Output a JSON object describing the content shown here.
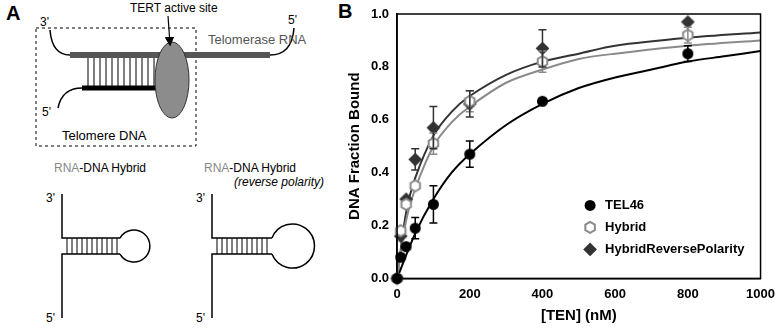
{
  "diagram": {
    "panel_label": "A",
    "active_site": "TERT active site",
    "telomerase_rna": "Telomerase RNA",
    "telomere_dna": "Telomere DNA",
    "rna_3prime": "3'",
    "rna_5prime": "5'",
    "dna_5prime": "5'",
    "hybrids": [
      {
        "title_rna": "RNA",
        "title_rest": "-DNA Hybrid",
        "end_top": "3'",
        "end_bottom": "5'"
      },
      {
        "title_rna": "RNA",
        "title_rest": "-DNA Hybrid",
        "subtitle": "(reverse polarity)",
        "end_top": "3'",
        "end_bottom": "5'"
      }
    ]
  },
  "chart_data": {
    "panel_label": "B",
    "type": "scatter",
    "x_label": "[TEN] (nM)",
    "y_label": "DNA Fraction Bound",
    "xlim": [
      0,
      1000
    ],
    "xticks": [
      0,
      200,
      400,
      600,
      800,
      1000
    ],
    "ylim": [
      0,
      1.0
    ],
    "yticks": [
      {
        "value": 0,
        "label": "0.0"
      },
      {
        "value": 0.2,
        "label": "0.2"
      },
      {
        "value": 0.4,
        "label": "0.4"
      },
      {
        "value": 0.6,
        "label": "0.6"
      },
      {
        "value": 0.8,
        "label": "0.8"
      },
      {
        "value": 1.0,
        "label": "1.0"
      }
    ],
    "grid": false,
    "legend": "lower right",
    "series": [
      {
        "name": "TEL46",
        "color": "#000000",
        "marker": "circle",
        "x": [
          0,
          10,
          25,
          50,
          100,
          200,
          400,
          800
        ],
        "values": [
          0,
          0.08,
          0.12,
          0.19,
          0.28,
          0.47,
          0.67,
          0.85
        ],
        "errors": [
          null,
          null,
          null,
          0.04,
          0.07,
          0.05,
          null,
          0.03
        ],
        "fit": {
          "x": [
            0,
            50,
            100,
            150,
            200,
            300,
            400,
            500,
            600,
            700,
            800,
            900,
            1000
          ],
          "values": [
            0,
            0.17,
            0.3,
            0.4,
            0.47,
            0.58,
            0.66,
            0.72,
            0.76,
            0.79,
            0.82,
            0.84,
            0.86
          ]
        }
      },
      {
        "name": "Hybrid",
        "color": "#8a8a8a",
        "marker": "hexagon_open",
        "x": [
          0,
          10,
          25,
          50,
          100,
          200,
          400,
          800
        ],
        "values": [
          0,
          0.18,
          0.28,
          0.35,
          0.51,
          0.67,
          0.82,
          0.92
        ],
        "errors": [
          null,
          null,
          null,
          null,
          0.04,
          0.04,
          0.04,
          0.03
        ],
        "fit": {
          "x": [
            0,
            25,
            50,
            100,
            150,
            200,
            300,
            400,
            500,
            600,
            800,
            1000
          ],
          "values": [
            0,
            0.22,
            0.34,
            0.5,
            0.59,
            0.65,
            0.74,
            0.79,
            0.83,
            0.85,
            0.88,
            0.9
          ]
        }
      },
      {
        "name": "HybridReversePolarity",
        "color": "#333333",
        "marker": "diamond",
        "x": [
          0,
          10,
          25,
          50,
          100,
          200,
          400,
          800
        ],
        "values": [
          0,
          0.16,
          0.3,
          0.45,
          0.57,
          0.66,
          0.87,
          0.97
        ],
        "errors": [
          null,
          null,
          null,
          0.04,
          0.08,
          0.05,
          0.07,
          null
        ],
        "fit": {
          "x": [
            0,
            25,
            50,
            100,
            150,
            200,
            300,
            400,
            500,
            600,
            800,
            1000
          ],
          "values": [
            0,
            0.25,
            0.38,
            0.54,
            0.63,
            0.69,
            0.77,
            0.82,
            0.85,
            0.88,
            0.91,
            0.93
          ]
        }
      }
    ]
  }
}
